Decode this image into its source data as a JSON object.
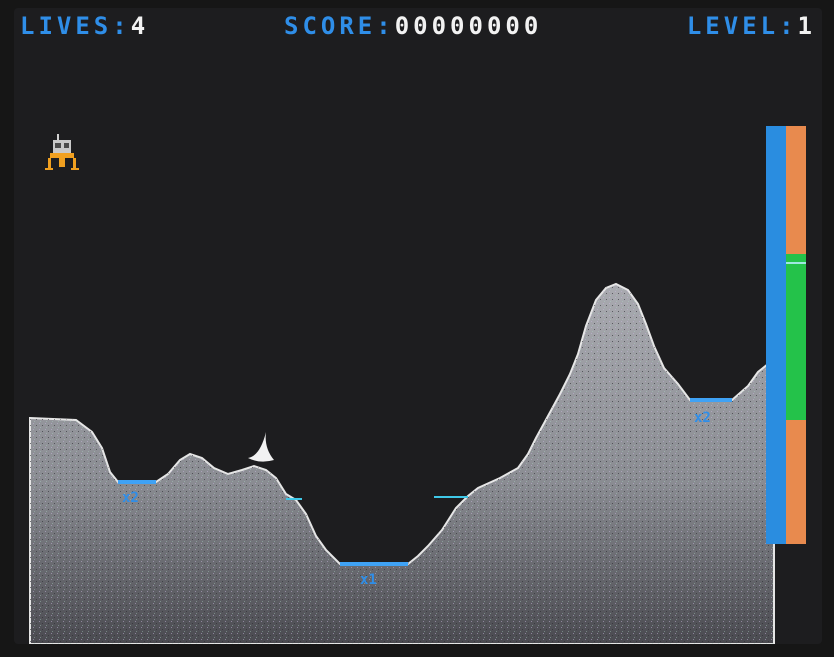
{
  "hud": {
    "lives_label": "LIVES:",
    "lives_value": "4",
    "score_label": "SCORE:",
    "score_value": "00000000",
    "level_label": "LEVEL:",
    "level_value": "1"
  },
  "landing_pads": [
    {
      "multiplier": "x2"
    },
    {
      "multiplier": "x1"
    },
    {
      "multiplier": "x2"
    }
  ],
  "fuel_gauge": {
    "level": 0.675,
    "zones": [
      {
        "status": "low",
        "color": "#e88a4e"
      },
      {
        "status": "ok",
        "color": "#24c24a"
      },
      {
        "status": "high",
        "color": "#e88a4e"
      }
    ]
  },
  "colors": {
    "hud_label": "#2f8ee8",
    "hud_value": "#f2f2f2",
    "terrain_fill": "#8c8c92",
    "terrain_edge": "#e6e6e6",
    "landing_pad": "#3fa2f5",
    "sky": "#1d1d1f",
    "lander_body": "#c9c9c9",
    "lander_legs": "#f0a020"
  },
  "sprites": {
    "lander": "lunar-lander-icon",
    "crater": "crescent-rock-icon"
  }
}
